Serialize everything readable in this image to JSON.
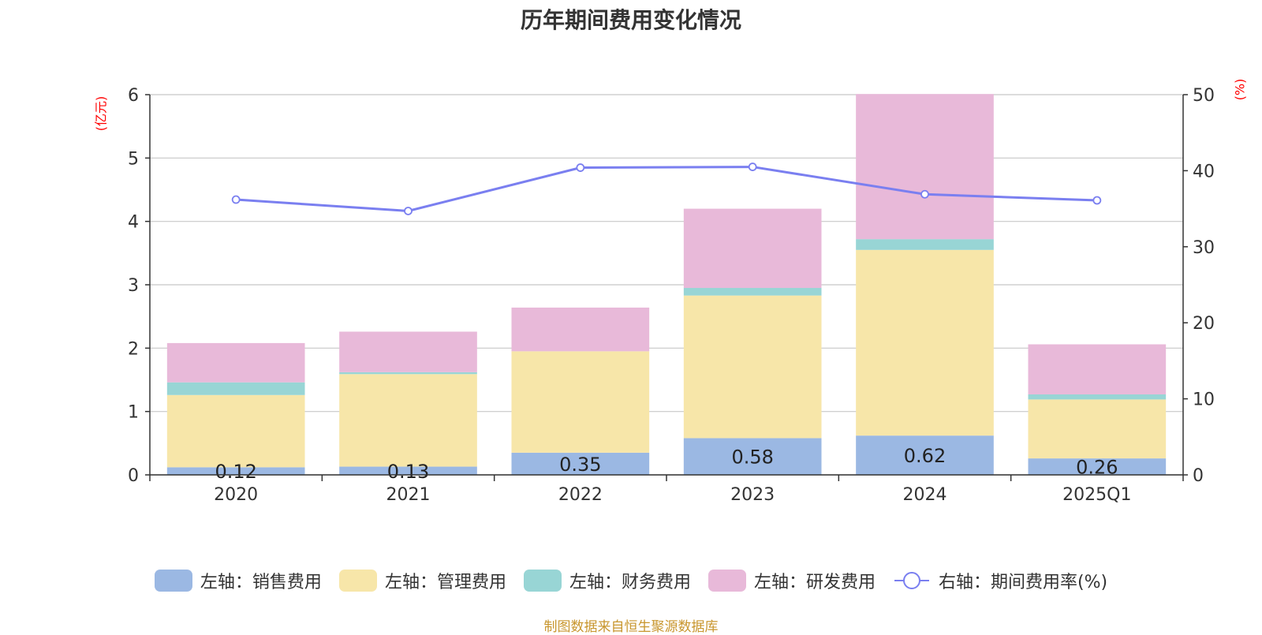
{
  "chart_data": {
    "type": "bar",
    "title": "历年期间费用变化情况",
    "left_unit": "(亿元)",
    "right_unit": "(%)",
    "categories": [
      "2020",
      "2021",
      "2022",
      "2023",
      "2024",
      "2025Q1"
    ],
    "y_left": {
      "min": 0,
      "max": 6,
      "ticks": [
        0,
        1,
        2,
        3,
        4,
        5,
        6
      ]
    },
    "y_right": {
      "min": 0,
      "max": 50,
      "ticks": [
        0,
        10,
        20,
        30,
        40,
        50
      ]
    },
    "series": [
      {
        "name": "左轴：销售费用",
        "type": "bar",
        "axis": "left",
        "color": "#9bb8e3",
        "values": [
          0.12,
          0.13,
          0.35,
          0.58,
          0.62,
          0.26
        ],
        "labels": [
          "0.12",
          "0.13",
          "0.35",
          "0.58",
          "0.62",
          "0.26"
        ]
      },
      {
        "name": "左轴：管理费用",
        "type": "bar",
        "axis": "left",
        "color": "#f7e6a9",
        "values": [
          1.14,
          1.46,
          1.6,
          2.25,
          2.93,
          0.93
        ]
      },
      {
        "name": "左轴：财务费用",
        "type": "bar",
        "axis": "left",
        "color": "#98d5d5",
        "values": [
          0.2,
          0.03,
          0.0,
          0.12,
          0.17,
          0.08
        ]
      },
      {
        "name": "左轴：研发费用",
        "type": "bar",
        "axis": "left",
        "color": "#e8b9d9",
        "values": [
          0.62,
          0.64,
          0.69,
          1.25,
          2.29,
          0.79
        ]
      },
      {
        "name": "右轴：期间费用率(%)",
        "type": "line",
        "axis": "right",
        "color": "#7a7ff0",
        "values": [
          36.2,
          34.7,
          40.4,
          40.5,
          36.9,
          36.1
        ]
      }
    ],
    "source": "制图数据来自恒生聚源数据库"
  }
}
